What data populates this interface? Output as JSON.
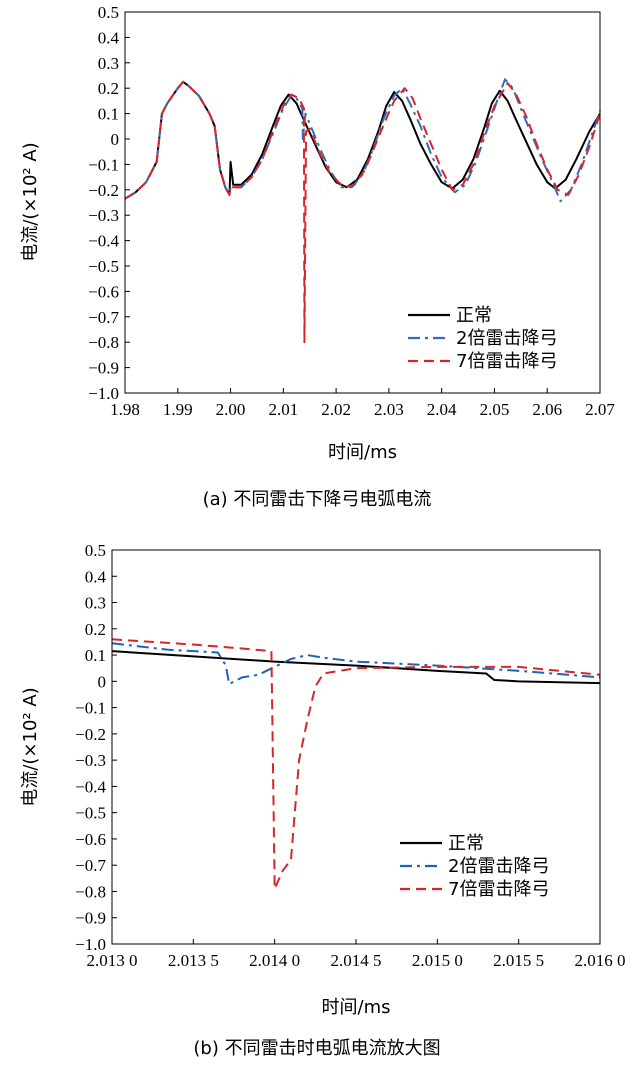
{
  "chart_data": [
    {
      "type": "line",
      "caption": "(a) 不同雷击下降弓电弧电流",
      "xlabel": "时间/ms",
      "ylabel": "电流/(×10² A)",
      "xlim": [
        1.98,
        2.07
      ],
      "ylim": [
        -1.0,
        0.5
      ],
      "xticks": [
        "1.98",
        "1.99",
        "2.00",
        "2.01",
        "2.02",
        "2.03",
        "2.04",
        "2.05",
        "2.06",
        "2.07"
      ],
      "xtick_values": [
        1.98,
        1.99,
        2.0,
        2.01,
        2.02,
        2.03,
        2.04,
        2.05,
        2.06,
        2.07
      ],
      "yticks": [
        "0.5",
        "0.4",
        "0.3",
        "0.2",
        "0.1",
        "0",
        "−0.1",
        "−0.2",
        "−0.3",
        "−0.4",
        "−0.5",
        "−0.6",
        "−0.7",
        "−0.8",
        "−0.9",
        "−1.0"
      ],
      "ytick_values": [
        0.5,
        0.4,
        0.3,
        0.2,
        0.1,
        0,
        -0.1,
        -0.2,
        -0.3,
        -0.4,
        -0.5,
        -0.6,
        -0.7,
        -0.8,
        -0.9,
        -1.0
      ],
      "legend_position": "bottom-right",
      "series": [
        {
          "name": "正常",
          "color": "#000000",
          "dash": "solid",
          "points": [
            [
              1.98,
              -0.235
            ],
            [
              1.982,
              -0.21
            ],
            [
              1.984,
              -0.17
            ],
            [
              1.986,
              -0.09
            ],
            [
              1.987,
              0.1
            ],
            [
              1.988,
              0.14
            ],
            [
              1.99,
              0.2
            ],
            [
              1.991,
              0.225
            ],
            [
              1.992,
              0.21
            ],
            [
              1.994,
              0.17
            ],
            [
              1.996,
              0.1
            ],
            [
              1.997,
              0.05
            ],
            [
              1.998,
              -0.12
            ],
            [
              1.999,
              -0.19
            ],
            [
              1.9998,
              -0.22
            ],
            [
              2.0,
              -0.09
            ],
            [
              2.0005,
              -0.18
            ],
            [
              2.002,
              -0.18
            ],
            [
              2.004,
              -0.14
            ],
            [
              2.006,
              -0.06
            ],
            [
              2.008,
              0.05
            ],
            [
              2.0095,
              0.13
            ],
            [
              2.011,
              0.175
            ],
            [
              2.0125,
              0.14
            ],
            [
              2.014,
              0.07
            ],
            [
              2.016,
              -0.02
            ],
            [
              2.018,
              -0.11
            ],
            [
              2.02,
              -0.17
            ],
            [
              2.022,
              -0.19
            ],
            [
              2.024,
              -0.16
            ],
            [
              2.026,
              -0.08
            ],
            [
              2.028,
              0.03
            ],
            [
              2.0295,
              0.13
            ],
            [
              2.031,
              0.185
            ],
            [
              2.0325,
              0.15
            ],
            [
              2.034,
              0.08
            ],
            [
              2.036,
              -0.02
            ],
            [
              2.038,
              -0.1
            ],
            [
              2.04,
              -0.17
            ],
            [
              2.042,
              -0.195
            ],
            [
              2.044,
              -0.16
            ],
            [
              2.046,
              -0.08
            ],
            [
              2.048,
              0.04
            ],
            [
              2.0495,
              0.14
            ],
            [
              2.051,
              0.19
            ],
            [
              2.0525,
              0.15
            ],
            [
              2.054,
              0.08
            ],
            [
              2.056,
              -0.01
            ],
            [
              2.058,
              -0.1
            ],
            [
              2.06,
              -0.17
            ],
            [
              2.0615,
              -0.195
            ],
            [
              2.0635,
              -0.16
            ],
            [
              2.0655,
              -0.08
            ],
            [
              2.068,
              0.03
            ],
            [
              2.07,
              0.1
            ]
          ]
        },
        {
          "name": "2倍雷击降弓",
          "color": "#2E6FB7",
          "dash": "dashdot",
          "points": [
            [
              1.98,
              -0.235
            ],
            [
              1.982,
              -0.21
            ],
            [
              1.984,
              -0.17
            ],
            [
              1.986,
              -0.09
            ],
            [
              1.987,
              0.1
            ],
            [
              1.988,
              0.14
            ],
            [
              1.99,
              0.2
            ],
            [
              1.991,
              0.225
            ],
            [
              1.992,
              0.21
            ],
            [
              1.994,
              0.17
            ],
            [
              1.996,
              0.1
            ],
            [
              1.997,
              0.05
            ],
            [
              1.998,
              -0.12
            ],
            [
              1.999,
              -0.19
            ],
            [
              1.9998,
              -0.22
            ],
            [
              2.0,
              -0.19
            ],
            [
              2.002,
              -0.19
            ],
            [
              2.004,
              -0.15
            ],
            [
              2.006,
              -0.08
            ],
            [
              2.008,
              0.02
            ],
            [
              2.01,
              0.12
            ],
            [
              2.0115,
              0.17
            ],
            [
              2.0125,
              0.16
            ],
            [
              2.0136,
              0.12
            ],
            [
              2.0137,
              0.0
            ],
            [
              2.0142,
              0.1
            ],
            [
              2.015,
              0.06
            ],
            [
              2.017,
              -0.04
            ],
            [
              2.019,
              -0.13
            ],
            [
              2.021,
              -0.19
            ],
            [
              2.023,
              -0.19
            ],
            [
              2.025,
              -0.14
            ],
            [
              2.027,
              -0.04
            ],
            [
              2.029,
              0.08
            ],
            [
              2.031,
              0.17
            ],
            [
              2.0325,
              0.2
            ],
            [
              2.034,
              0.14
            ],
            [
              2.036,
              0.05
            ],
            [
              2.038,
              -0.06
            ],
            [
              2.04,
              -0.15
            ],
            [
              2.0425,
              -0.21
            ],
            [
              2.0445,
              -0.18
            ],
            [
              2.0465,
              -0.09
            ],
            [
              2.0485,
              0.03
            ],
            [
              2.0505,
              0.15
            ],
            [
              2.052,
              0.235
            ],
            [
              2.0535,
              0.2
            ],
            [
              2.055,
              0.12
            ],
            [
              2.057,
              0.02
            ],
            [
              2.059,
              -0.08
            ],
            [
              2.061,
              -0.17
            ],
            [
              2.0625,
              -0.245
            ],
            [
              2.0645,
              -0.2
            ],
            [
              2.0665,
              -0.1
            ],
            [
              2.0685,
              0.02
            ],
            [
              2.07,
              0.11
            ]
          ]
        },
        {
          "name": "7倍雷击降弓",
          "color": "#D9242B",
          "dash": "dash",
          "points": [
            [
              1.98,
              -0.235
            ],
            [
              1.982,
              -0.21
            ],
            [
              1.984,
              -0.17
            ],
            [
              1.986,
              -0.09
            ],
            [
              1.987,
              0.1
            ],
            [
              1.988,
              0.14
            ],
            [
              1.99,
              0.2
            ],
            [
              1.991,
              0.225
            ],
            [
              1.992,
              0.21
            ],
            [
              1.994,
              0.17
            ],
            [
              1.996,
              0.1
            ],
            [
              1.997,
              0.05
            ],
            [
              1.998,
              -0.12
            ],
            [
              1.999,
              -0.19
            ],
            [
              1.9998,
              -0.22
            ],
            [
              2.0,
              -0.19
            ],
            [
              2.002,
              -0.19
            ],
            [
              2.004,
              -0.15
            ],
            [
              2.006,
              -0.08
            ],
            [
              2.008,
              0.03
            ],
            [
              2.01,
              0.13
            ],
            [
              2.0115,
              0.175
            ],
            [
              2.013,
              0.16
            ],
            [
              2.0139,
              0.12
            ],
            [
              2.014,
              -0.8
            ],
            [
              2.0143,
              0.03
            ],
            [
              2.015,
              0.04
            ],
            [
              2.017,
              -0.06
            ],
            [
              2.019,
              -0.14
            ],
            [
              2.0215,
              -0.19
            ],
            [
              2.0235,
              -0.18
            ],
            [
              2.0255,
              -0.12
            ],
            [
              2.0275,
              -0.02
            ],
            [
              2.0295,
              0.08
            ],
            [
              2.031,
              0.15
            ],
            [
              2.033,
              0.2
            ],
            [
              2.0345,
              0.16
            ],
            [
              2.036,
              0.08
            ],
            [
              2.038,
              -0.02
            ],
            [
              2.04,
              -0.12
            ],
            [
              2.042,
              -0.2
            ],
            [
              2.044,
              -0.18
            ],
            [
              2.046,
              -0.1
            ],
            [
              2.048,
              0.02
            ],
            [
              2.05,
              0.13
            ],
            [
              2.0525,
              0.22
            ],
            [
              2.054,
              0.18
            ],
            [
              2.056,
              0.09
            ],
            [
              2.058,
              -0.02
            ],
            [
              2.06,
              -0.12
            ],
            [
              2.062,
              -0.2
            ],
            [
              2.064,
              -0.22
            ],
            [
              2.066,
              -0.14
            ],
            [
              2.068,
              -0.03
            ],
            [
              2.07,
              0.1
            ]
          ]
        }
      ]
    },
    {
      "type": "line",
      "caption": "(b) 不同雷击时电弧电流放大图",
      "xlabel": "时间/ms",
      "ylabel": "电流/(×10² A)",
      "xlim": [
        2.013,
        2.016
      ],
      "ylim": [
        -1.0,
        0.5
      ],
      "xticks": [
        "2.013 0",
        "2.013 5",
        "2.014 0",
        "2.014 5",
        "2.015 0",
        "2.015 5",
        "2.016 0"
      ],
      "xtick_values": [
        2.013,
        2.0135,
        2.014,
        2.0145,
        2.015,
        2.0155,
        2.016
      ],
      "yticks": [
        "0.5",
        "0.4",
        "0.3",
        "0.2",
        "0.1",
        "0",
        "−0.1",
        "−0.2",
        "−0.3",
        "−0.4",
        "−0.5",
        "−0.6",
        "−0.7",
        "−0.8",
        "−0.9",
        "−1.0"
      ],
      "ytick_values": [
        0.5,
        0.4,
        0.3,
        0.2,
        0.1,
        0,
        -0.1,
        -0.2,
        -0.3,
        -0.4,
        -0.5,
        -0.6,
        -0.7,
        -0.8,
        -0.9,
        -1.0
      ],
      "legend_position": "bottom-right",
      "series": [
        {
          "name": "正常",
          "color": "#000000",
          "dash": "solid",
          "points": [
            [
              2.013,
              0.115
            ],
            [
              2.0135,
              0.095
            ],
            [
              2.014,
              0.075
            ],
            [
              2.0145,
              0.06
            ],
            [
              2.015,
              0.04
            ],
            [
              2.0153,
              0.03
            ],
            [
              2.01535,
              0.005
            ],
            [
              2.0155,
              0.0
            ],
            [
              2.016,
              -0.007
            ]
          ]
        },
        {
          "name": "2倍雷击降弓",
          "color": "#1E63B4",
          "dash": "dashdot",
          "points": [
            [
              2.013,
              0.145
            ],
            [
              2.01335,
              0.12
            ],
            [
              2.01365,
              0.11
            ],
            [
              2.0137,
              0.06
            ],
            [
              2.01372,
              -0.01
            ],
            [
              2.0138,
              0.015
            ],
            [
              2.0139,
              0.025
            ],
            [
              2.014,
              0.055
            ],
            [
              2.0141,
              0.085
            ],
            [
              2.0142,
              0.1
            ],
            [
              2.0143,
              0.09
            ],
            [
              2.0145,
              0.075
            ],
            [
              2.015,
              0.06
            ],
            [
              2.0155,
              0.04
            ],
            [
              2.016,
              0.015
            ]
          ]
        },
        {
          "name": "7倍雷击降弓",
          "color": "#D9242B",
          "dash": "dash",
          "points": [
            [
              2.013,
              0.16
            ],
            [
              2.0135,
              0.14
            ],
            [
              2.0138,
              0.125
            ],
            [
              2.01398,
              0.115
            ],
            [
              2.014,
              -0.79
            ],
            [
              2.01405,
              -0.72
            ],
            [
              2.0141,
              -0.68
            ],
            [
              2.01415,
              -0.3
            ],
            [
              2.0142,
              -0.15
            ],
            [
              2.01425,
              -0.02
            ],
            [
              2.0143,
              0.03
            ],
            [
              2.0145,
              0.05
            ],
            [
              2.015,
              0.055
            ],
            [
              2.0155,
              0.055
            ],
            [
              2.016,
              0.025
            ]
          ]
        }
      ]
    }
  ]
}
